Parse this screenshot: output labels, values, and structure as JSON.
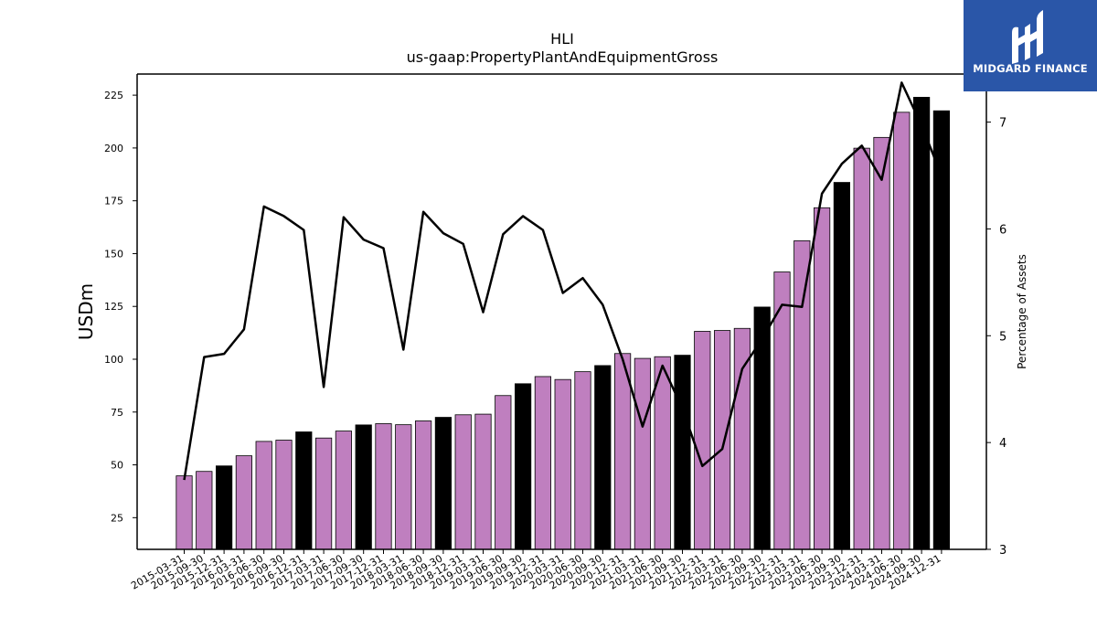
{
  "logo": {
    "text": "MIDGARD FINANCE"
  },
  "chart_data": {
    "type": "bar",
    "title": "HLI",
    "subtitle": "us-gaap:PropertyPlantAndEquipmentGross",
    "ylabel": "USDm",
    "y2label": "Percentage of Assets",
    "ylim": [
      10,
      235
    ],
    "y2lim": [
      3,
      7.45
    ],
    "yticks": [
      25,
      50,
      75,
      100,
      125,
      150,
      175,
      200,
      225
    ],
    "y2ticks": [
      3,
      4,
      5,
      6,
      7
    ],
    "categories": [
      "2015-03-31",
      "2015-09-30",
      "2015-12-31",
      "2016-03-31",
      "2016-06-30",
      "2016-09-30",
      "2016-12-31",
      "2017-03-31",
      "2017-06-30",
      "2017-09-30",
      "2017-12-31",
      "2018-03-31",
      "2018-06-30",
      "2018-09-30",
      "2018-12-31",
      "2019-03-31",
      "2019-06-30",
      "2019-09-30",
      "2019-12-31",
      "2020-03-31",
      "2020-06-30",
      "2020-09-30",
      "2020-12-31",
      "2021-03-31",
      "2021-06-30",
      "2021-09-30",
      "2021-12-31",
      "2022-03-31",
      "2022-06-30",
      "2022-09-30",
      "2022-12-31",
      "2023-03-31",
      "2023-06-30",
      "2023-09-30",
      "2023-12-31",
      "2024-03-31",
      "2024-06-30",
      "2024-09-30",
      "2024-12-31"
    ],
    "series": [
      {
        "type": "bar",
        "values": [
          44.8,
          46.9,
          49.5,
          54.3,
          61.1,
          61.7,
          65.6,
          62.7,
          66.0,
          68.9,
          69.5,
          69.0,
          70.8,
          72.5,
          73.7,
          74.0,
          82.8,
          88.4,
          91.8,
          90.4,
          94.1,
          97.0,
          102.7,
          100.4,
          101.2,
          101.9,
          113.2,
          113.6,
          114.6,
          124.7,
          141.3,
          156.1,
          171.7,
          183.7,
          199.9,
          205.0,
          216.9,
          224.0,
          217.6
        ],
        "highlight": [
          false,
          false,
          true,
          false,
          false,
          false,
          true,
          false,
          false,
          true,
          false,
          false,
          false,
          true,
          false,
          false,
          false,
          true,
          false,
          false,
          false,
          true,
          false,
          false,
          false,
          true,
          false,
          false,
          false,
          true,
          false,
          false,
          false,
          true,
          false,
          false,
          false,
          true,
          true
        ],
        "color": "#bf7fbf",
        "highlight_color": "#000000"
      },
      {
        "type": "line",
        "axis": "right",
        "values": [
          3.65,
          4.8,
          4.83,
          5.06,
          6.21,
          6.12,
          5.99,
          4.52,
          6.11,
          5.9,
          5.82,
          4.87,
          6.16,
          5.96,
          5.86,
          5.22,
          5.95,
          6.12,
          5.99,
          5.4,
          5.54,
          5.29,
          4.78,
          4.15,
          4.72,
          4.32,
          3.78,
          3.94,
          4.69,
          4.97,
          5.29,
          5.27,
          6.33,
          6.61,
          6.78,
          6.46,
          7.37,
          6.97,
          6.5
        ],
        "color": "#000000"
      }
    ]
  }
}
